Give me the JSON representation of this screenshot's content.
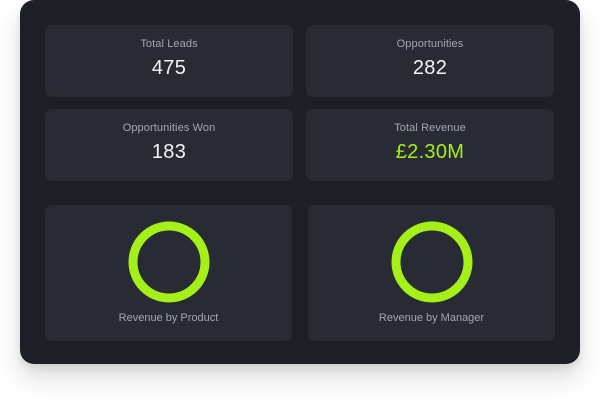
{
  "stats": [
    {
      "label": "Total Leads",
      "value": "475"
    },
    {
      "label": "Opportunities",
      "value": "282"
    },
    {
      "label": "Opportunities Won",
      "value": "183"
    },
    {
      "label": "Total Revenue",
      "value": "£2.30M"
    }
  ],
  "charts": [
    {
      "label": "Revenue by Product"
    },
    {
      "label": "Revenue by Manager"
    }
  ],
  "colors": {
    "panel": "#1c1f26",
    "card": "#282b33",
    "accent": "#a6f019",
    "label": "#a3a7b0",
    "value": "#f3f4f6"
  }
}
